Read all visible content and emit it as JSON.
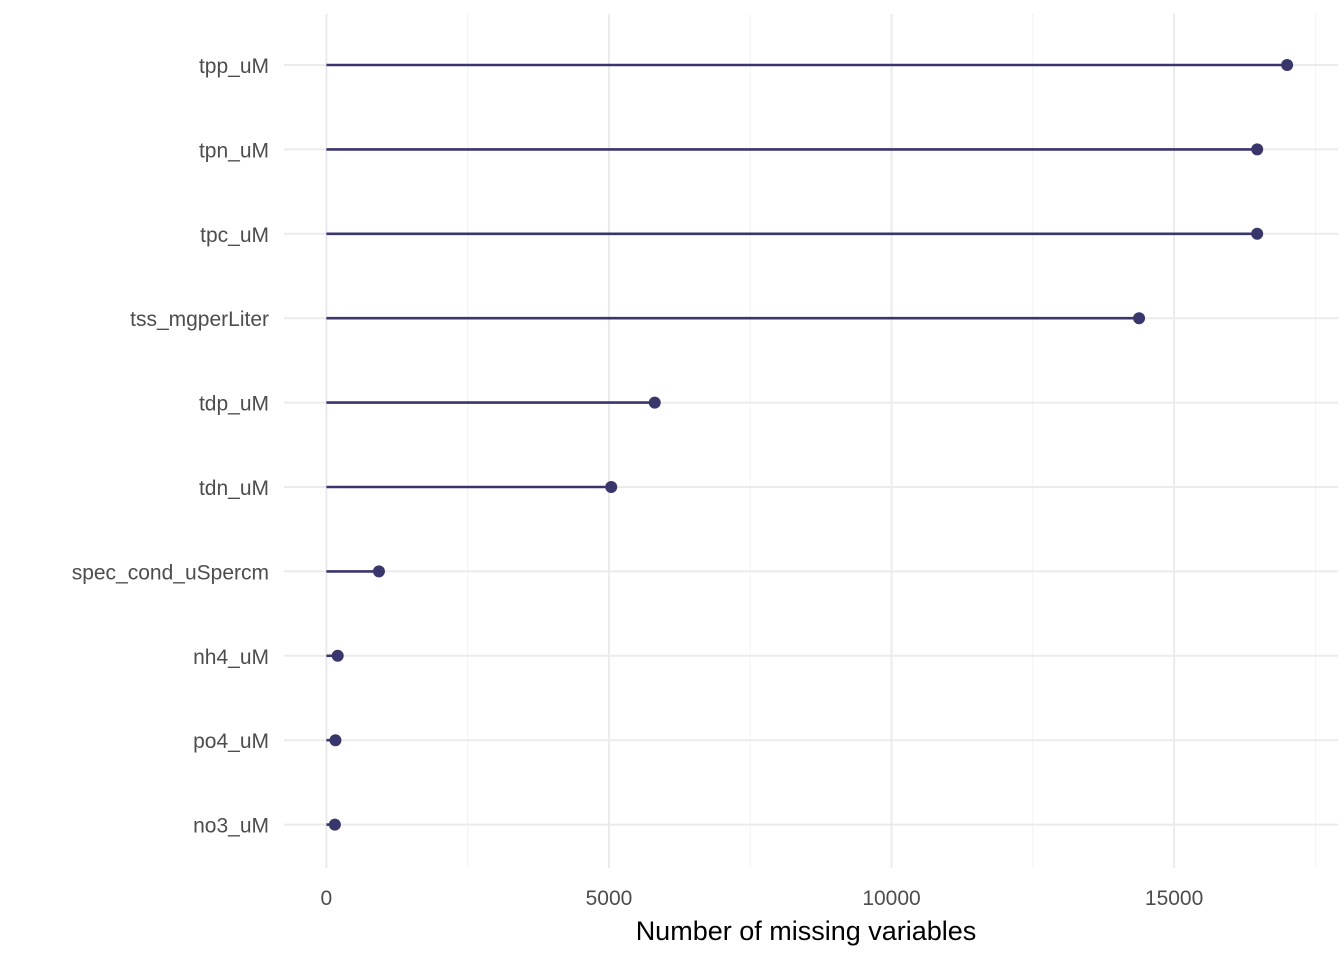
{
  "chart_data": {
    "type": "lollipop",
    "categories": [
      "tpp_uM",
      "tpn_uM",
      "tpc_uM",
      "tss_mgperLiter",
      "tdp_uM",
      "tdn_uM",
      "spec_cond_uSpercm",
      "nh4_uM",
      "po4_uM",
      "no3_uM"
    ],
    "values": [
      17000,
      16470,
      16470,
      14380,
      5810,
      5040,
      930,
      200,
      160,
      150
    ],
    "xlabel": "Number of missing variables",
    "ylabel": "",
    "title": "",
    "xlim": [
      -750,
      17900
    ],
    "xticks": [
      0,
      5000,
      10000,
      15000
    ],
    "xtick_labels": [
      "0",
      "5000",
      "10000",
      "15000"
    ],
    "grid": true,
    "colors": {
      "mark": "#38366b",
      "gridline": "#ebebeb"
    }
  }
}
